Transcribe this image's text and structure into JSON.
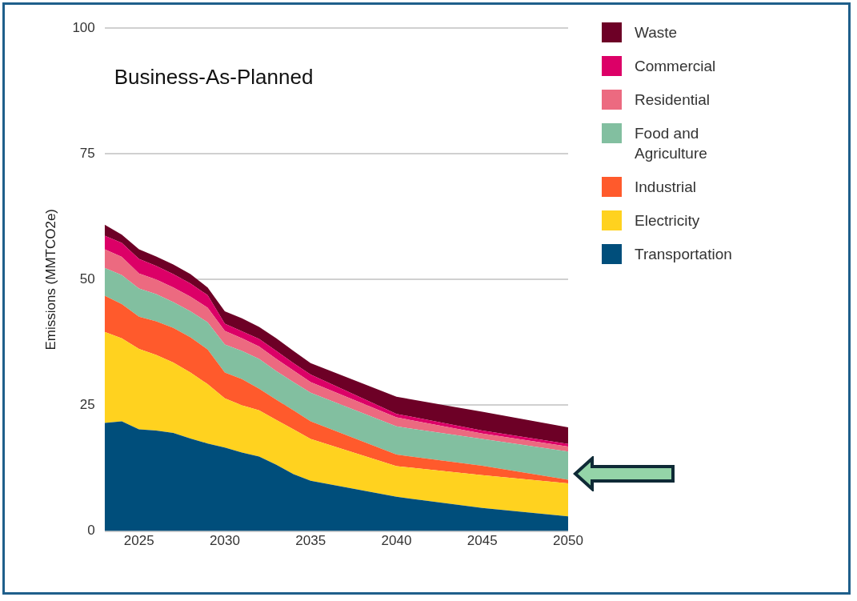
{
  "chart_data": {
    "type": "area",
    "title": "Business-As-Planned",
    "ylabel": "Emissions (MMTCO2e)",
    "stacked": true,
    "x": [
      2023,
      2024,
      2025,
      2026,
      2027,
      2028,
      2029,
      2030,
      2031,
      2032,
      2033,
      2034,
      2035,
      2040,
      2045,
      2050
    ],
    "xlim": [
      2023,
      2050
    ],
    "xticks": [
      2025,
      2030,
      2035,
      2040,
      2045,
      2050
    ],
    "ylim": [
      0,
      100
    ],
    "yticks": [
      0,
      25,
      50,
      75,
      100
    ],
    "grid": "y",
    "legend": "top right",
    "series": [
      {
        "name": "Transportation",
        "color": "#004e7b",
        "values": [
          21.5,
          21.8,
          20.2,
          20.0,
          19.5,
          18.4,
          17.4,
          16.6,
          15.6,
          14.8,
          13.2,
          11.3,
          10.0,
          6.8,
          4.6,
          2.9
        ]
      },
      {
        "name": "Electricity",
        "color": "#ffd21f",
        "values": [
          18.1,
          16.5,
          16.0,
          15.0,
          14.0,
          13.1,
          11.8,
          9.8,
          9.4,
          9.2,
          8.9,
          8.9,
          8.3,
          6.1,
          6.5,
          6.6
        ]
      },
      {
        "name": "Industrial",
        "color": "#ff5a2c",
        "values": [
          7.2,
          6.8,
          6.4,
          6.7,
          6.9,
          7.0,
          6.9,
          5.1,
          5.2,
          4.3,
          4.0,
          3.8,
          3.5,
          2.3,
          1.9,
          0.7
        ]
      },
      {
        "name": "Food and Agriculture",
        "color": "#82bfa0",
        "values": [
          5.5,
          5.8,
          5.6,
          5.4,
          5.1,
          5.2,
          5.4,
          5.6,
          5.6,
          5.9,
          5.7,
          5.6,
          5.7,
          5.6,
          5.3,
          5.6
        ]
      },
      {
        "name": "Residential",
        "color": "#ec6a80",
        "values": [
          3.7,
          3.6,
          3.0,
          2.9,
          2.9,
          2.9,
          2.9,
          2.7,
          2.5,
          2.5,
          2.4,
          2.3,
          2.1,
          1.8,
          1.1,
          1.0
        ]
      },
      {
        "name": "Commercial",
        "color": "#dc0067",
        "values": [
          2.7,
          2.8,
          2.9,
          2.7,
          2.7,
          2.6,
          2.5,
          1.4,
          1.4,
          1.5,
          1.6,
          1.5,
          1.5,
          0.7,
          0.6,
          0.5
        ]
      },
      {
        "name": "Waste",
        "color": "#6d0026",
        "values": [
          2.2,
          1.6,
          1.9,
          1.9,
          1.9,
          1.9,
          1.5,
          2.5,
          2.6,
          2.4,
          2.5,
          2.4,
          2.3,
          3.4,
          3.7,
          3.3
        ]
      }
    ]
  }
}
